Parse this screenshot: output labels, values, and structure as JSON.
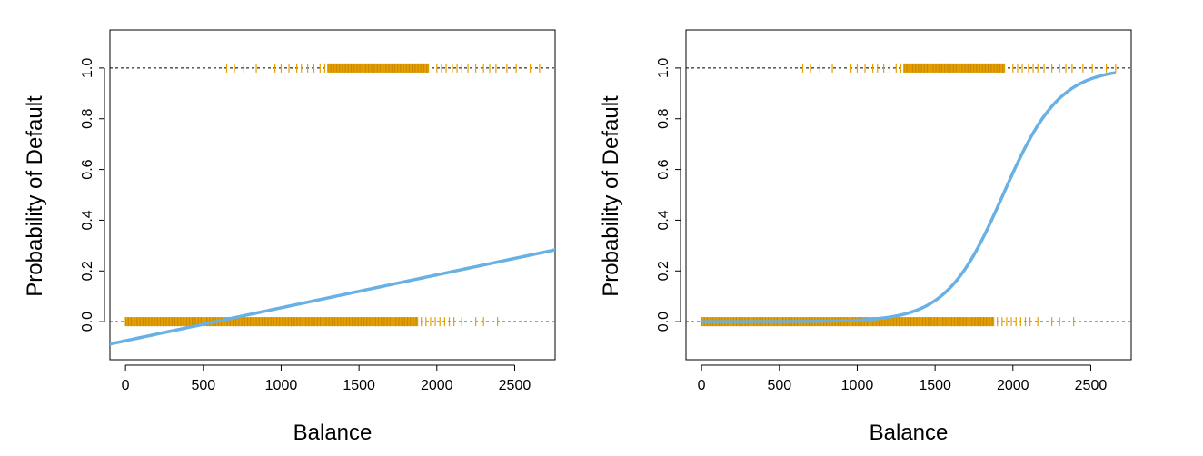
{
  "figure": {
    "colors": {
      "observations": "#E69F00",
      "fit": "#69B0E4",
      "reference": "#000000"
    }
  },
  "chart_data": [
    {
      "type": "scatter",
      "panel": "left",
      "title": "",
      "xlabel": "Balance",
      "ylabel": "Probability of Default",
      "xlim": [
        -100,
        2760
      ],
      "ylim": [
        -0.15,
        1.15
      ],
      "xticks": [
        "0",
        "500",
        "1000",
        "1500",
        "2000",
        "2500"
      ],
      "yticks": [
        "0.0",
        "0.2",
        "0.4",
        "0.6",
        "0.8",
        "1.0"
      ],
      "reference_lines_y": [
        0,
        1
      ],
      "observations": [
        {
          "y": 1,
          "dense_range": [
            1300,
            1950
          ],
          "sparse_x": [
            650,
            700,
            760,
            840,
            960,
            1000,
            1050,
            1100,
            1130,
            1170,
            1210,
            1250,
            1280,
            2000,
            2030,
            2060,
            2100,
            2130,
            2160,
            2200,
            2250,
            2300,
            2340,
            2380,
            2450,
            2510,
            2600,
            2660
          ]
        },
        {
          "y": 0,
          "dense_range": [
            0,
            1880
          ],
          "sparse_x": [
            1900,
            1930,
            1960,
            1990,
            2020,
            2050,
            2080,
            2110,
            2160,
            2250,
            2300,
            2390
          ]
        }
      ],
      "fit": {
        "model": "linear",
        "intercept": -0.0752,
        "slope": 0.0001299,
        "x_range": [
          -100,
          2760
        ]
      }
    },
    {
      "type": "scatter",
      "panel": "right",
      "title": "",
      "xlabel": "Balance",
      "ylabel": "Probability of Default",
      "xlim": [
        -100,
        2760
      ],
      "ylim": [
        -0.15,
        1.15
      ],
      "xticks": [
        "0",
        "500",
        "1000",
        "1500",
        "2000",
        "2500"
      ],
      "yticks": [
        "0.0",
        "0.2",
        "0.4",
        "0.6",
        "0.8",
        "1.0"
      ],
      "reference_lines_y": [
        0,
        1
      ],
      "observations": [
        {
          "y": 1,
          "dense_range": [
            1300,
            1950
          ],
          "sparse_x": [
            650,
            700,
            760,
            840,
            960,
            1000,
            1050,
            1100,
            1130,
            1170,
            1210,
            1250,
            1280,
            2000,
            2030,
            2060,
            2100,
            2130,
            2160,
            2200,
            2250,
            2300,
            2340,
            2380,
            2450,
            2510,
            2600,
            2660
          ]
        },
        {
          "y": 0,
          "dense_range": [
            0,
            1880
          ],
          "sparse_x": [
            1900,
            1930,
            1960,
            1990,
            2020,
            2050,
            2080,
            2110,
            2160,
            2250,
            2300,
            2390
          ]
        }
      ],
      "fit": {
        "model": "logistic",
        "intercept": -10.65,
        "slope": 0.0055,
        "x_range": [
          0,
          2650
        ]
      }
    }
  ]
}
